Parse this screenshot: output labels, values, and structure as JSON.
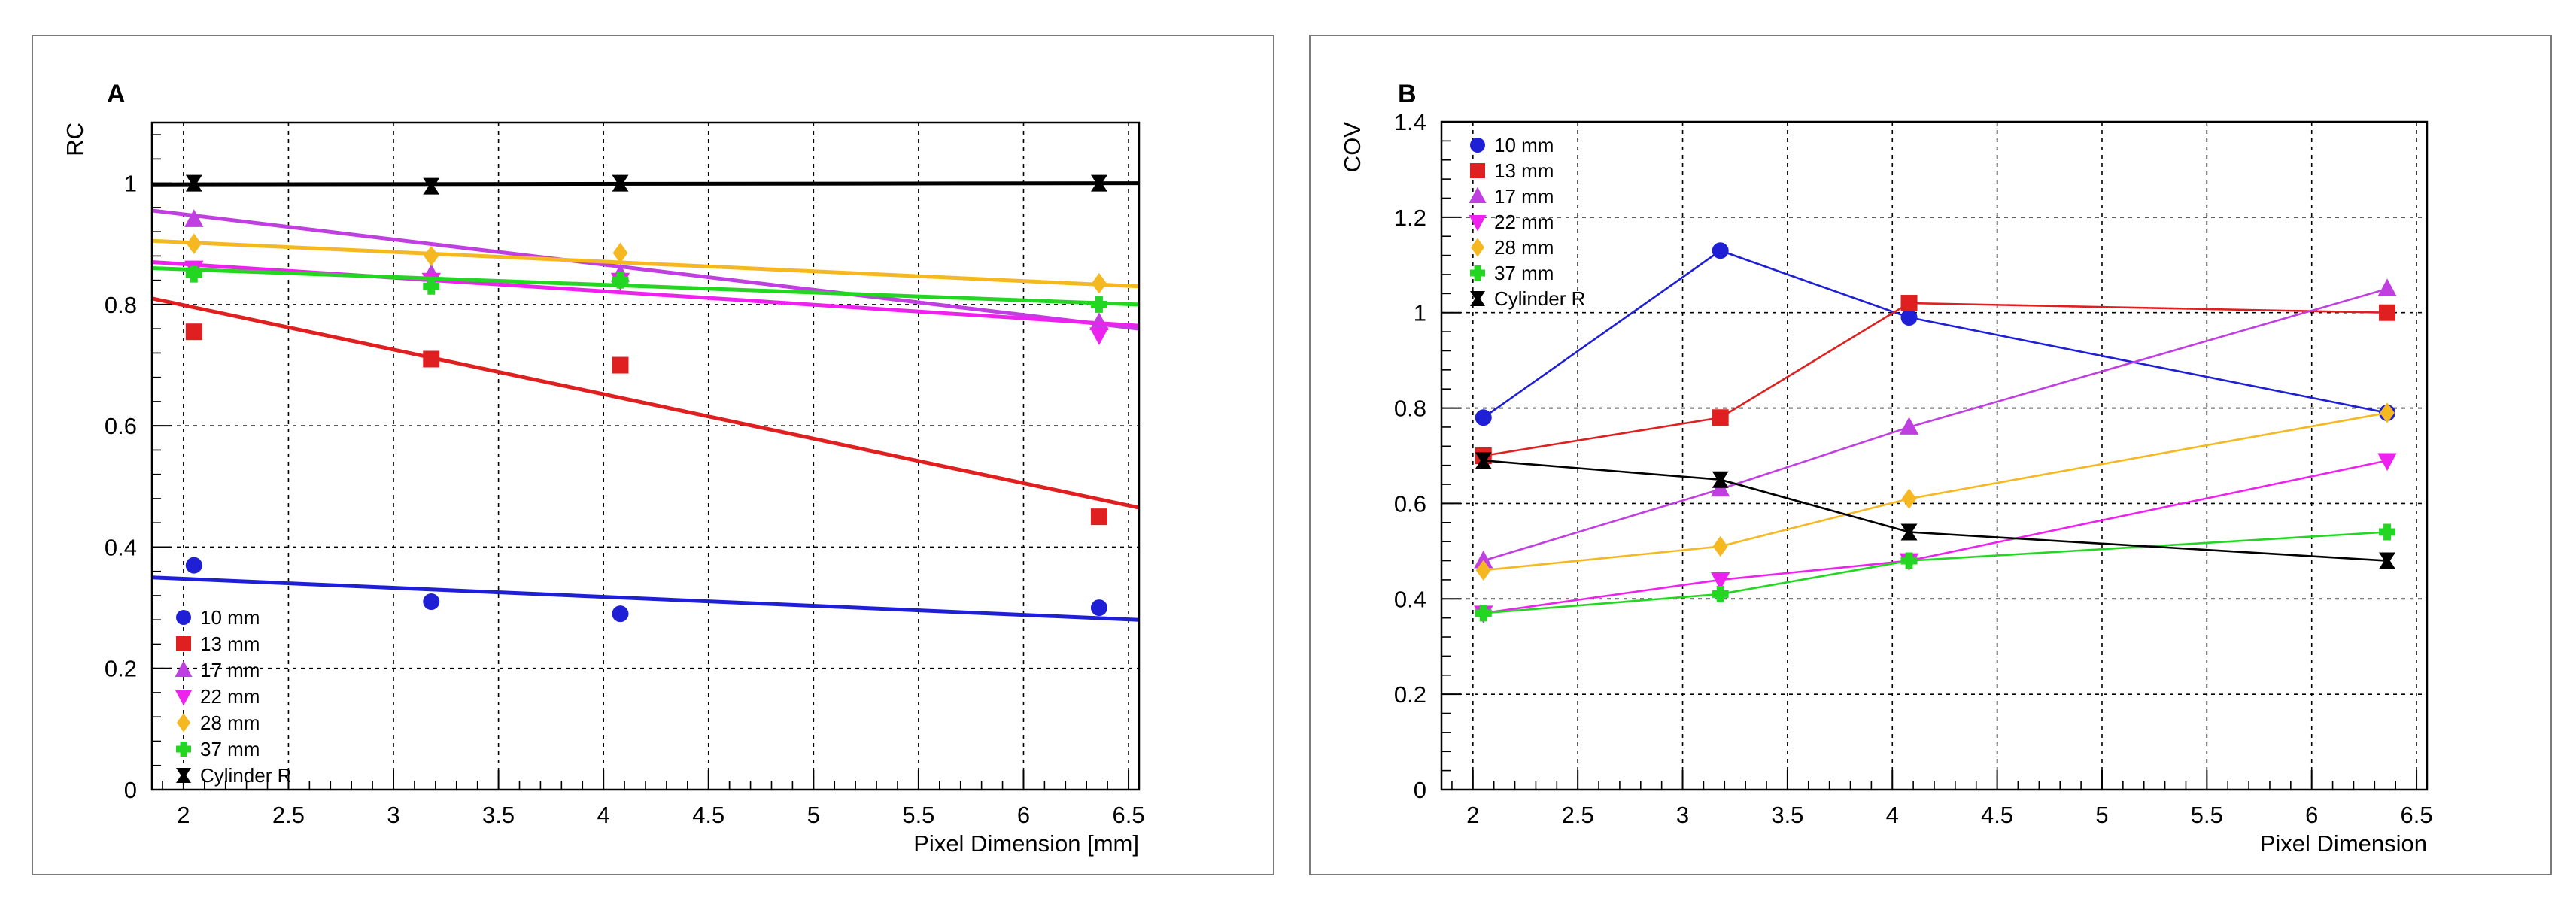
{
  "chart_data": [
    {
      "panel_label": "A",
      "type": "scatter",
      "xlabel": "Pixel Dimension [mm]",
      "ylabel": "RC",
      "xlim": [
        1.85,
        6.55
      ],
      "ylim": [
        0,
        1.1
      ],
      "x_ticks": [
        2,
        2.5,
        3,
        3.5,
        4,
        4.5,
        5,
        5.5,
        6,
        6.5
      ],
      "y_ticks": [
        0,
        0.2,
        0.4,
        0.6,
        0.8,
        1
      ],
      "grid": true,
      "legend_position": "bottom-left",
      "series": [
        {
          "name": "10 mm",
          "color": "#1f1fd6",
          "marker": "circle",
          "x": [
            2.05,
            3.18,
            4.08,
            6.36
          ],
          "y": [
            0.37,
            0.31,
            0.29,
            0.3
          ],
          "fit": {
            "x": [
              1.85,
              6.55
            ],
            "y": [
              0.35,
              0.28
            ]
          }
        },
        {
          "name": "13 mm",
          "color": "#e02020",
          "marker": "square",
          "x": [
            2.05,
            3.18,
            4.08,
            6.36
          ],
          "y": [
            0.755,
            0.71,
            0.7,
            0.45
          ],
          "fit": {
            "x": [
              1.85,
              6.55
            ],
            "y": [
              0.81,
              0.465
            ]
          }
        },
        {
          "name": "17 mm",
          "color": "#c03fe0",
          "marker": "triangle-up",
          "x": [
            2.05,
            3.18,
            4.08,
            6.36
          ],
          "y": [
            0.94,
            0.85,
            0.85,
            0.77
          ],
          "fit": {
            "x": [
              1.85,
              6.55
            ],
            "y": [
              0.955,
              0.76
            ]
          }
        },
        {
          "name": "22 mm",
          "color": "#ee22ee",
          "marker": "triangle-down",
          "x": [
            2.05,
            3.18,
            4.08,
            6.36
          ],
          "y": [
            0.86,
            0.84,
            0.84,
            0.75
          ],
          "fit": {
            "x": [
              1.85,
              6.55
            ],
            "y": [
              0.87,
              0.765
            ]
          }
        },
        {
          "name": "28 mm",
          "color": "#f5b820",
          "marker": "diamond",
          "x": [
            2.05,
            3.18,
            4.08,
            6.36
          ],
          "y": [
            0.9,
            0.88,
            0.885,
            0.835
          ],
          "fit": {
            "x": [
              1.85,
              6.55
            ],
            "y": [
              0.905,
              0.83
            ]
          }
        },
        {
          "name": "37 mm",
          "color": "#22d622",
          "marker": "cross",
          "x": [
            2.05,
            3.18,
            4.08,
            6.36
          ],
          "y": [
            0.85,
            0.83,
            0.84,
            0.8
          ],
          "fit": {
            "x": [
              1.85,
              6.55
            ],
            "y": [
              0.86,
              0.8
            ]
          }
        },
        {
          "name": "Cylinder R",
          "color": "#000000",
          "marker": "star",
          "x": [
            2.05,
            3.18,
            4.08,
            6.36
          ],
          "y": [
            1.0,
            0.995,
            1.0,
            1.0
          ],
          "fit": {
            "x": [
              1.85,
              6.55
            ],
            "y": [
              0.998,
              1.0
            ]
          }
        }
      ]
    },
    {
      "panel_label": "B",
      "type": "line",
      "xlabel": "Pixel Dimension",
      "ylabel": "COV",
      "xlim": [
        1.85,
        6.55
      ],
      "ylim": [
        0,
        1.4
      ],
      "x_ticks": [
        2,
        2.5,
        3,
        3.5,
        4,
        4.5,
        5,
        5.5,
        6,
        6.5
      ],
      "y_ticks": [
        0,
        0.2,
        0.4,
        0.6,
        0.8,
        1,
        1.2,
        1.4
      ],
      "grid": true,
      "legend_position": "top-left",
      "series": [
        {
          "name": "10 mm",
          "color": "#1f1fd6",
          "marker": "circle",
          "x": [
            2.05,
            3.18,
            4.08,
            6.36
          ],
          "y": [
            0.78,
            1.13,
            0.99,
            0.79
          ]
        },
        {
          "name": "13 mm",
          "color": "#e02020",
          "marker": "square",
          "x": [
            2.05,
            3.18,
            4.08,
            6.36
          ],
          "y": [
            0.7,
            0.78,
            1.02,
            1.0
          ]
        },
        {
          "name": "17 mm",
          "color": "#c03fe0",
          "marker": "triangle-up",
          "x": [
            2.05,
            3.18,
            4.08,
            6.36
          ],
          "y": [
            0.48,
            0.63,
            0.76,
            1.05
          ]
        },
        {
          "name": "22 mm",
          "color": "#ee22ee",
          "marker": "triangle-down",
          "x": [
            2.05,
            3.18,
            4.08,
            6.36
          ],
          "y": [
            0.37,
            0.44,
            0.48,
            0.69
          ]
        },
        {
          "name": "28 mm",
          "color": "#f5b820",
          "marker": "diamond",
          "x": [
            2.05,
            3.18,
            4.08,
            6.36
          ],
          "y": [
            0.46,
            0.51,
            0.61,
            0.79
          ]
        },
        {
          "name": "37 mm",
          "color": "#22d622",
          "marker": "cross",
          "x": [
            2.05,
            3.18,
            4.08,
            6.36
          ],
          "y": [
            0.37,
            0.41,
            0.48,
            0.54
          ]
        },
        {
          "name": "Cylinder R",
          "color": "#000000",
          "marker": "star",
          "x": [
            2.05,
            3.18,
            4.08,
            6.36
          ],
          "y": [
            0.69,
            0.65,
            0.54,
            0.48
          ]
        }
      ]
    }
  ]
}
